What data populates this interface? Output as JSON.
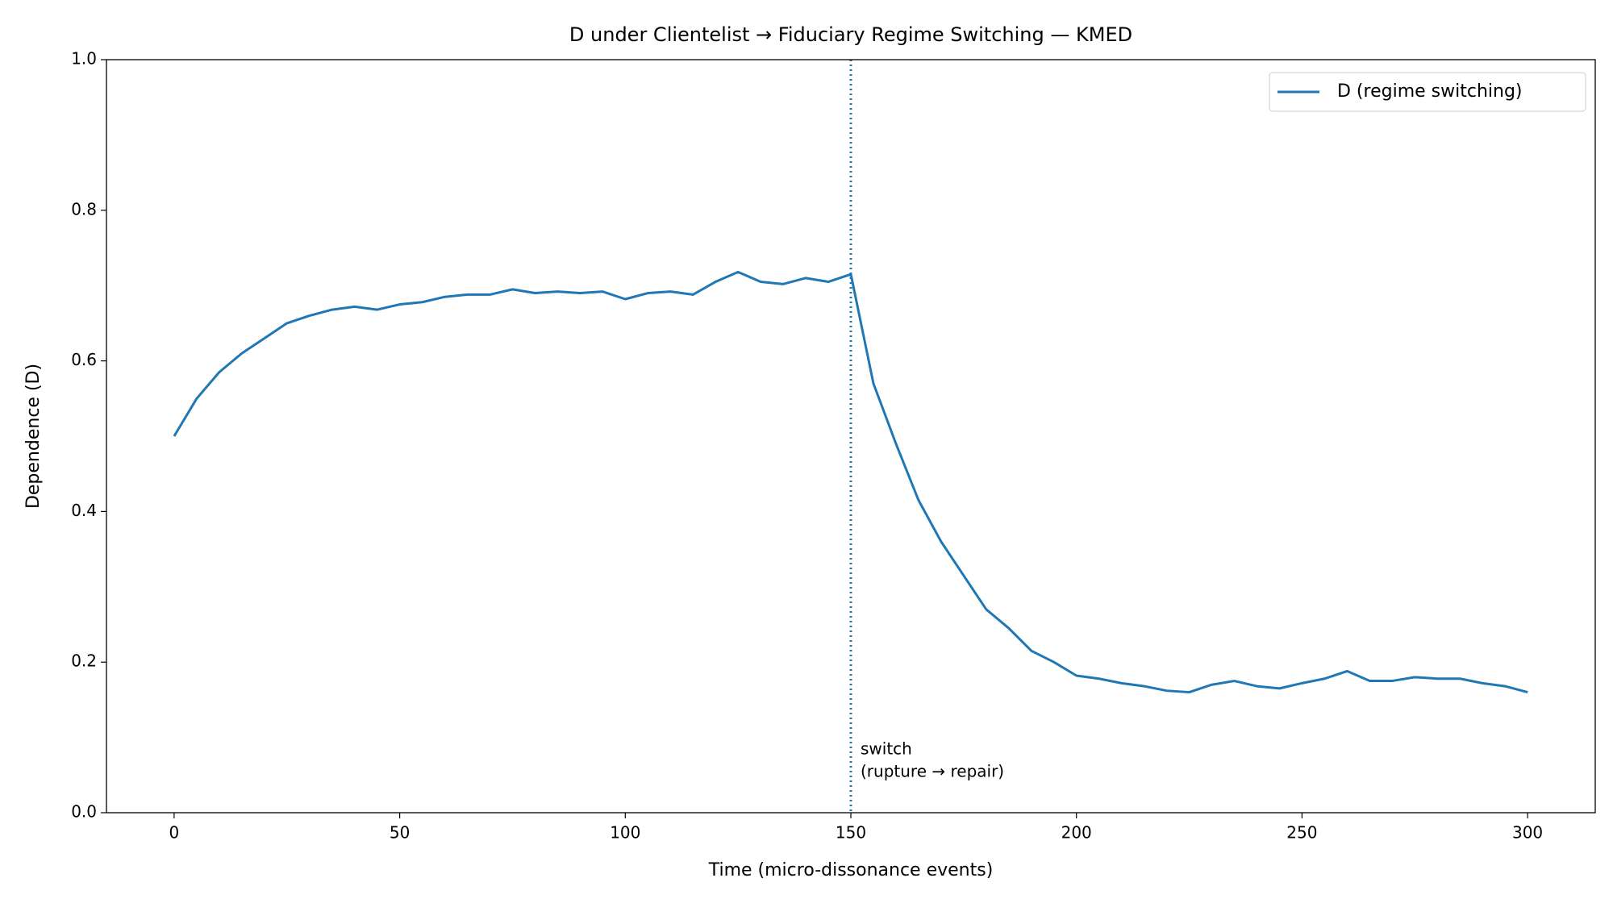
{
  "chart_data": {
    "type": "line",
    "title": "D under Clientelist → Fiduciary Regime Switching — KMED",
    "x_label": "Time (micro-dissonance events)",
    "y_label": "Dependence (D)",
    "x": [
      0,
      5,
      10,
      15,
      20,
      25,
      30,
      35,
      40,
      45,
      50,
      55,
      60,
      65,
      70,
      75,
      80,
      85,
      90,
      95,
      100,
      105,
      110,
      115,
      120,
      125,
      130,
      135,
      140,
      145,
      150,
      155,
      160,
      165,
      170,
      175,
      180,
      185,
      190,
      195,
      200,
      205,
      210,
      215,
      220,
      225,
      230,
      235,
      240,
      245,
      250,
      255,
      260,
      265,
      270,
      275,
      280,
      285,
      290,
      295,
      300
    ],
    "series": [
      {
        "name": "D (regime switching)",
        "color": "#1f77b4",
        "values": [
          0.5,
          0.55,
          0.585,
          0.61,
          0.63,
          0.65,
          0.66,
          0.668,
          0.672,
          0.668,
          0.675,
          0.678,
          0.685,
          0.688,
          0.688,
          0.695,
          0.69,
          0.692,
          0.69,
          0.692,
          0.682,
          0.69,
          0.692,
          0.688,
          0.705,
          0.718,
          0.705,
          0.702,
          0.71,
          0.705,
          0.715,
          0.57,
          0.49,
          0.415,
          0.36,
          0.315,
          0.27,
          0.245,
          0.215,
          0.2,
          0.182,
          0.178,
          0.172,
          0.168,
          0.162,
          0.16,
          0.17,
          0.175,
          0.168,
          0.165,
          0.172,
          0.178,
          0.188,
          0.175,
          0.175,
          0.18,
          0.178,
          0.178,
          0.172,
          0.168,
          0.16
        ]
      }
    ],
    "switch_x": 150,
    "annotation": [
      "switch",
      "(rupture → repair)"
    ],
    "xlim": [
      -15,
      315
    ],
    "ylim": [
      0,
      1
    ],
    "xticks": [
      0,
      50,
      100,
      150,
      200,
      250,
      300
    ],
    "yticks": [
      {
        "value": 0,
        "label": "0.0"
      },
      {
        "value": 0.2,
        "label": "0.2"
      },
      {
        "value": 0.4,
        "label": "0.4"
      },
      {
        "value": 0.6,
        "label": "0.6"
      },
      {
        "value": 0.8,
        "label": "0.8"
      },
      {
        "value": 1,
        "label": "1.0"
      }
    ],
    "grid": false,
    "legend": "upper right"
  }
}
